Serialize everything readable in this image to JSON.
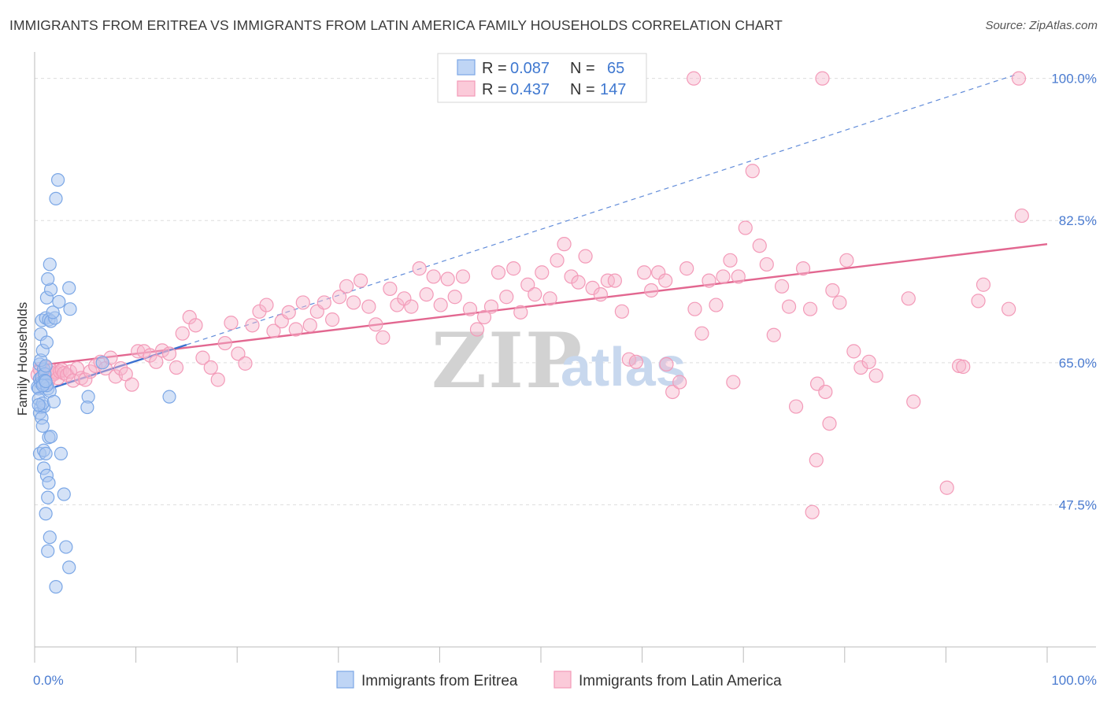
{
  "title": "IMMIGRANTS FROM ERITREA VS IMMIGRANTS FROM LATIN AMERICA FAMILY HOUSEHOLDS CORRELATION CHART",
  "source": "Source: ZipAtlas.com",
  "watermark": {
    "part1": "ZIP",
    "part2": "atlas"
  },
  "colors": {
    "blue": "#7ba7e6",
    "blue_line": "#3b70d0",
    "pink": "#f39ab8",
    "pink_line": "#e26790",
    "tick": "#4a7bd0"
  },
  "legend": {
    "rows": [
      {
        "r_label": "R =",
        "r_value": "0.087",
        "n_label": "N =",
        "n_value": "65"
      },
      {
        "r_label": "R =",
        "r_value": "0.437",
        "n_label": "N =",
        "n_value": "147"
      }
    ]
  },
  "chart_data": {
    "type": "scatter",
    "title": "IMMIGRANTS FROM ERITREA VS IMMIGRANTS FROM LATIN AMERICA FAMILY HOUSEHOLDS CORRELATION CHART",
    "xlabel": "",
    "ylabel": "Family Households",
    "xlim": [
      0,
      100
    ],
    "ylim": [
      30,
      102
    ],
    "x_tick_labels": [
      "0.0%",
      "100.0%"
    ],
    "y_ticks": [
      47.5,
      65.0,
      82.5,
      100.0
    ],
    "y_tick_labels": [
      "47.5%",
      "65.0%",
      "82.5%",
      "100.0%"
    ],
    "grid": true,
    "series": [
      {
        "name": "Immigrants from Eritrea",
        "r": 0.087,
        "n": 65,
        "trend": {
          "x": [
            0,
            15
          ],
          "y": [
            61.2,
            67.2
          ]
        },
        "trend_extended": {
          "x": [
            15,
            97
          ],
          "y": [
            67.2,
            100.5
          ]
        },
        "points": [
          [
            0.3,
            62
          ],
          [
            0.5,
            63
          ],
          [
            0.6,
            62.5
          ],
          [
            0.4,
            61.8
          ],
          [
            0.8,
            62.5
          ],
          [
            0.7,
            63.2
          ],
          [
            0.5,
            64.8
          ],
          [
            0.9,
            64.2
          ],
          [
            1.0,
            63.6
          ],
          [
            0.6,
            65.3
          ],
          [
            0.4,
            60.5
          ],
          [
            0.6,
            59.5
          ],
          [
            0.5,
            58.8
          ],
          [
            0.9,
            59.6
          ],
          [
            0.7,
            58.2
          ],
          [
            1.0,
            62.8
          ],
          [
            1.1,
            64.6
          ],
          [
            1.3,
            61.8
          ],
          [
            1.5,
            61.5
          ],
          [
            1.2,
            62.2
          ],
          [
            0.8,
            66.5
          ],
          [
            0.6,
            68.5
          ],
          [
            0.7,
            70.2
          ],
          [
            1.1,
            70.5
          ],
          [
            1.4,
            70.3
          ],
          [
            1.6,
            70.1
          ],
          [
            2.0,
            70.5
          ],
          [
            1.8,
            71.2
          ],
          [
            1.2,
            73.0
          ],
          [
            1.6,
            74.0
          ],
          [
            1.3,
            75.3
          ],
          [
            1.5,
            77.1
          ],
          [
            3.4,
            74.2
          ],
          [
            3.5,
            71.6
          ],
          [
            2.4,
            72.5
          ],
          [
            1.2,
            67.5
          ],
          [
            2.1,
            85.2
          ],
          [
            2.3,
            87.5
          ],
          [
            0.8,
            57.2
          ],
          [
            1.4,
            55.8
          ],
          [
            1.6,
            55.9
          ],
          [
            0.5,
            53.8
          ],
          [
            0.9,
            54.2
          ],
          [
            1.1,
            53.8
          ],
          [
            2.6,
            53.8
          ],
          [
            0.9,
            52.0
          ],
          [
            1.2,
            51.1
          ],
          [
            1.4,
            50.2
          ],
          [
            2.9,
            48.8
          ],
          [
            1.3,
            48.4
          ],
          [
            1.1,
            46.4
          ],
          [
            1.5,
            43.5
          ],
          [
            3.1,
            42.3
          ],
          [
            1.3,
            41.8
          ],
          [
            3.4,
            39.8
          ],
          [
            2.1,
            37.4
          ],
          [
            0.8,
            60.0
          ],
          [
            0.4,
            59.8
          ],
          [
            0.8,
            62.2
          ],
          [
            1.1,
            62.7
          ],
          [
            5.3,
            60.8
          ],
          [
            5.2,
            59.5
          ],
          [
            6.7,
            65.0
          ],
          [
            13.3,
            60.8
          ],
          [
            1.9,
            60.2
          ]
        ]
      },
      {
        "name": "Immigrants from Latin America",
        "r": 0.437,
        "n": 147,
        "trend": {
          "x": [
            0,
            100
          ],
          "y": [
            64.6,
            79.6
          ]
        },
        "points": [
          [
            0.3,
            63.5
          ],
          [
            0.5,
            64.2
          ],
          [
            0.7,
            62.8
          ],
          [
            0.9,
            63.8
          ],
          [
            1.1,
            64.4
          ],
          [
            1.3,
            62.6
          ],
          [
            1.5,
            63.2
          ],
          [
            1.7,
            64.0
          ],
          [
            1.9,
            63.6
          ],
          [
            2.1,
            63.8
          ],
          [
            2.3,
            63.1
          ],
          [
            2.5,
            63.9
          ],
          [
            2.7,
            64.1
          ],
          [
            2.9,
            63.7
          ],
          [
            3.2,
            63.5
          ],
          [
            3.5,
            63.9
          ],
          [
            3.8,
            62.8
          ],
          [
            4.2,
            64.3
          ],
          [
            4.6,
            63.1
          ],
          [
            5.0,
            62.9
          ],
          [
            5.5,
            63.9
          ],
          [
            6.0,
            64.6
          ],
          [
            6.5,
            65.1
          ],
          [
            7.0,
            64.3
          ],
          [
            7.5,
            65.6
          ],
          [
            8.0,
            63.3
          ],
          [
            8.5,
            64.3
          ],
          [
            9.0,
            63.6
          ],
          [
            9.6,
            62.3
          ],
          [
            10.2,
            66.4
          ],
          [
            10.8,
            66.4
          ],
          [
            11.4,
            65.9
          ],
          [
            12.0,
            65.1
          ],
          [
            12.6,
            66.5
          ],
          [
            13.3,
            66.1
          ],
          [
            14.0,
            64.4
          ],
          [
            14.6,
            68.6
          ],
          [
            15.3,
            70.6
          ],
          [
            15.9,
            69.6
          ],
          [
            16.6,
            65.6
          ],
          [
            17.4,
            64.4
          ],
          [
            18.1,
            62.9
          ],
          [
            18.8,
            67.4
          ],
          [
            19.4,
            69.9
          ],
          [
            20.1,
            66.1
          ],
          [
            20.8,
            64.9
          ],
          [
            21.5,
            69.6
          ],
          [
            22.2,
            71.3
          ],
          [
            22.9,
            72.1
          ],
          [
            23.6,
            68.9
          ],
          [
            24.4,
            70.1
          ],
          [
            25.1,
            71.2
          ],
          [
            25.8,
            69.1
          ],
          [
            26.5,
            72.4
          ],
          [
            27.2,
            69.6
          ],
          [
            27.9,
            71.3
          ],
          [
            28.6,
            72.4
          ],
          [
            29.4,
            70.3
          ],
          [
            30.1,
            73.1
          ],
          [
            30.8,
            74.4
          ],
          [
            31.5,
            72.4
          ],
          [
            32.2,
            75.1
          ],
          [
            33.0,
            71.9
          ],
          [
            33.7,
            69.7
          ],
          [
            34.4,
            68.1
          ],
          [
            35.1,
            74.1
          ],
          [
            35.8,
            72.1
          ],
          [
            36.5,
            72.9
          ],
          [
            37.2,
            71.9
          ],
          [
            38.0,
            76.6
          ],
          [
            38.7,
            73.4
          ],
          [
            39.4,
            75.6
          ],
          [
            40.1,
            72.1
          ],
          [
            40.8,
            75.3
          ],
          [
            41.5,
            73.1
          ],
          [
            42.3,
            75.6
          ],
          [
            43.0,
            71.6
          ],
          [
            43.7,
            69.1
          ],
          [
            44.4,
            70.6
          ],
          [
            45.1,
            71.9
          ],
          [
            45.8,
            76.1
          ],
          [
            46.6,
            73.1
          ],
          [
            47.3,
            76.6
          ],
          [
            48.0,
            71.2
          ],
          [
            48.7,
            74.6
          ],
          [
            49.4,
            73.4
          ],
          [
            50.1,
            76.1
          ],
          [
            50.9,
            72.9
          ],
          [
            51.6,
            77.6
          ],
          [
            52.3,
            79.6
          ],
          [
            53.0,
            75.6
          ],
          [
            53.7,
            74.9
          ],
          [
            54.4,
            78.1
          ],
          [
            55.1,
            74.2
          ],
          [
            55.9,
            73.4
          ],
          [
            56.6,
            75.1
          ],
          [
            57.3,
            75.1
          ],
          [
            58.0,
            71.3
          ],
          [
            58.7,
            65.4
          ],
          [
            59.4,
            65.1
          ],
          [
            60.2,
            76.1
          ],
          [
            60.9,
            73.9
          ],
          [
            61.6,
            76.1
          ],
          [
            62.3,
            75.1
          ],
          [
            63.0,
            61.4
          ],
          [
            63.7,
            62.6
          ],
          [
            64.4,
            76.6
          ],
          [
            65.2,
            71.6
          ],
          [
            65.9,
            68.6
          ],
          [
            66.6,
            75.1
          ],
          [
            67.3,
            72.1
          ],
          [
            68.0,
            75.6
          ],
          [
            68.7,
            77.6
          ],
          [
            69.5,
            75.6
          ],
          [
            70.2,
            81.6
          ],
          [
            70.9,
            88.6
          ],
          [
            71.6,
            79.4
          ],
          [
            72.3,
            77.1
          ],
          [
            73.0,
            68.4
          ],
          [
            73.8,
            74.4
          ],
          [
            74.5,
            71.9
          ],
          [
            75.2,
            59.6
          ],
          [
            75.9,
            76.6
          ],
          [
            76.6,
            71.6
          ],
          [
            77.3,
            62.4
          ],
          [
            78.1,
            61.4
          ],
          [
            78.8,
            73.9
          ],
          [
            79.5,
            72.4
          ],
          [
            80.2,
            77.6
          ],
          [
            80.9,
            66.4
          ],
          [
            81.6,
            64.4
          ],
          [
            82.4,
            65.1
          ],
          [
            83.1,
            63.4
          ],
          [
            77.2,
            53.0
          ],
          [
            76.8,
            46.6
          ],
          [
            62.4,
            64.8
          ],
          [
            69.0,
            62.6
          ],
          [
            65.1,
            100.0
          ],
          [
            77.8,
            100.0
          ],
          [
            97.2,
            100.0
          ],
          [
            97.5,
            83.1
          ],
          [
            91.3,
            64.6
          ],
          [
            90.1,
            49.6
          ],
          [
            78.5,
            57.5
          ],
          [
            96.2,
            71.6
          ],
          [
            91.7,
            64.5
          ],
          [
            86.8,
            60.2
          ],
          [
            86.3,
            72.9
          ],
          [
            93.7,
            74.6
          ],
          [
            93.2,
            72.6
          ]
        ]
      }
    ]
  },
  "bottom_legend": [
    {
      "label": "Immigrants from Eritrea"
    },
    {
      "label": "Immigrants from Latin America"
    }
  ]
}
